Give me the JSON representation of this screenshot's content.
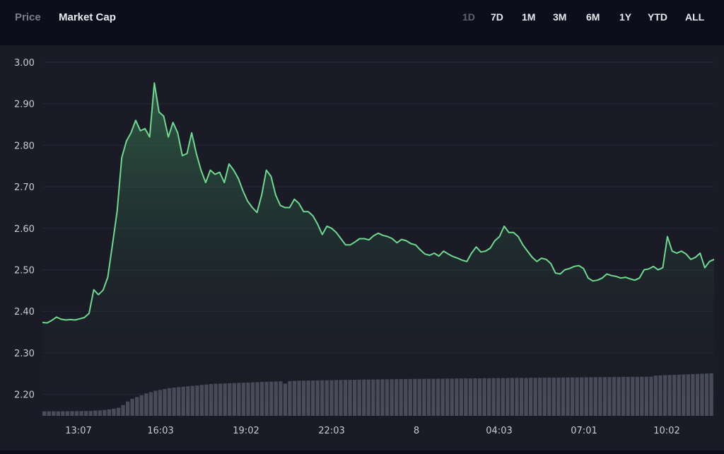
{
  "header": {
    "metric_tabs": [
      {
        "label": "Price",
        "active": false
      },
      {
        "label": "Market Cap",
        "active": true
      }
    ],
    "range_tabs": [
      {
        "label": "1D",
        "active": true
      },
      {
        "label": "7D",
        "active": false
      },
      {
        "label": "1M",
        "active": false
      },
      {
        "label": "3M",
        "active": false
      },
      {
        "label": "6M",
        "active": false
      },
      {
        "label": "1Y",
        "active": false
      },
      {
        "label": "YTD",
        "active": false
      },
      {
        "label": "ALL",
        "active": false
      }
    ]
  },
  "colors": {
    "background": "#0d0e1c",
    "panel": "#1a1b26",
    "line": "#6fd98f",
    "volume": "#4a4c5c",
    "tick_text": "#c8cad4"
  },
  "chart_data": {
    "type": "line",
    "ylim": [
      2.15,
      3.04
    ],
    "y_ticks": [
      "3.00",
      "2.90",
      "2.80",
      "2.70",
      "2.60",
      "2.50",
      "2.40",
      "2.30",
      "2.20"
    ],
    "x_ticks": [
      "13:07",
      "16:03",
      "19:02",
      "22:03",
      "8",
      "04:03",
      "07:01",
      "10:02"
    ],
    "grid": true,
    "series": [
      {
        "values": [
          2.373,
          2.372,
          2.378,
          2.386,
          2.381,
          2.379,
          2.38,
          2.379,
          2.382,
          2.385,
          2.395,
          2.452,
          2.44,
          2.451,
          2.482,
          2.56,
          2.64,
          2.77,
          2.81,
          2.83,
          2.86,
          2.835,
          2.84,
          2.82,
          2.95,
          2.88,
          2.87,
          2.82,
          2.855,
          2.83,
          2.775,
          2.78,
          2.83,
          2.78,
          2.74,
          2.71,
          2.74,
          2.73,
          2.735,
          2.71,
          2.755,
          2.74,
          2.72,
          2.69,
          2.665,
          2.65,
          2.638,
          2.68,
          2.74,
          2.725,
          2.68,
          2.655,
          2.65,
          2.65,
          2.67,
          2.66,
          2.64,
          2.64,
          2.63,
          2.61,
          2.585,
          2.605,
          2.6,
          2.59,
          2.575,
          2.56,
          2.56,
          2.567,
          2.575,
          2.575,
          2.572,
          2.582,
          2.588,
          2.583,
          2.58,
          2.575,
          2.565,
          2.573,
          2.57,
          2.563,
          2.56,
          2.548,
          2.538,
          2.535,
          2.54,
          2.533,
          2.545,
          2.538,
          2.532,
          2.528,
          2.523,
          2.52,
          2.54,
          2.555,
          2.543,
          2.545,
          2.552,
          2.57,
          2.58,
          2.605,
          2.59,
          2.59,
          2.58,
          2.56,
          2.545,
          2.53,
          2.52,
          2.528,
          2.525,
          2.515,
          2.492,
          2.49,
          2.5,
          2.503,
          2.508,
          2.51,
          2.503,
          2.48,
          2.473,
          2.475,
          2.48,
          2.49,
          2.486,
          2.484,
          2.48,
          2.482,
          2.478,
          2.475,
          2.48,
          2.5,
          2.502,
          2.508,
          2.5,
          2.505,
          2.58,
          2.545,
          2.54,
          2.545,
          2.538,
          2.525,
          2.53,
          2.54,
          2.505,
          2.52,
          2.525
        ]
      }
    ],
    "volume": [
      0.5,
      0.5,
      0.5,
      0.5,
      0.51,
      0.51,
      0.52,
      0.52,
      0.53,
      0.53,
      0.55,
      0.58,
      0.6,
      0.65,
      0.72,
      0.8,
      0.9,
      1.2,
      1.6,
      1.9,
      2.1,
      2.3,
      2.5,
      2.65,
      2.8,
      2.9,
      3.0,
      3.1,
      3.15,
      3.2,
      3.25,
      3.3,
      3.35,
      3.4,
      3.45,
      3.5,
      3.55,
      3.58,
      3.6,
      3.62,
      3.64,
      3.66,
      3.68,
      3.7,
      3.72,
      3.74,
      3.76,
      3.78,
      3.8,
      3.82,
      3.84,
      3.86,
      3.6,
      3.88,
      3.9,
      3.92,
      3.93,
      3.94,
      3.95,
      3.96,
      3.97,
      3.98,
      3.99,
      4.0,
      4.01,
      4.02,
      4.02,
      4.03,
      4.04,
      4.05,
      4.05,
      4.06,
      4.07,
      4.08,
      4.08,
      4.09,
      4.1,
      4.1,
      4.11,
      4.12,
      4.12,
      4.13,
      4.13,
      4.14,
      4.14,
      4.15,
      4.15,
      4.16,
      4.16,
      4.17,
      4.17,
      4.18,
      4.18,
      4.19,
      4.19,
      4.2,
      4.2,
      4.21,
      4.21,
      4.22,
      4.22,
      4.23,
      4.23,
      4.24,
      4.24,
      4.25,
      4.25,
      4.26,
      4.26,
      4.27,
      4.27,
      4.28,
      4.28,
      4.29,
      4.29,
      4.3,
      4.3,
      4.31,
      4.31,
      4.32,
      4.32,
      4.33,
      4.33,
      4.34,
      4.34,
      4.35,
      4.35,
      4.36,
      4.36,
      4.37,
      4.37,
      4.38,
      4.5,
      4.52,
      4.54,
      4.56,
      4.58,
      4.6,
      4.62,
      4.64,
      4.66,
      4.68,
      4.7,
      4.72,
      4.74
    ]
  }
}
